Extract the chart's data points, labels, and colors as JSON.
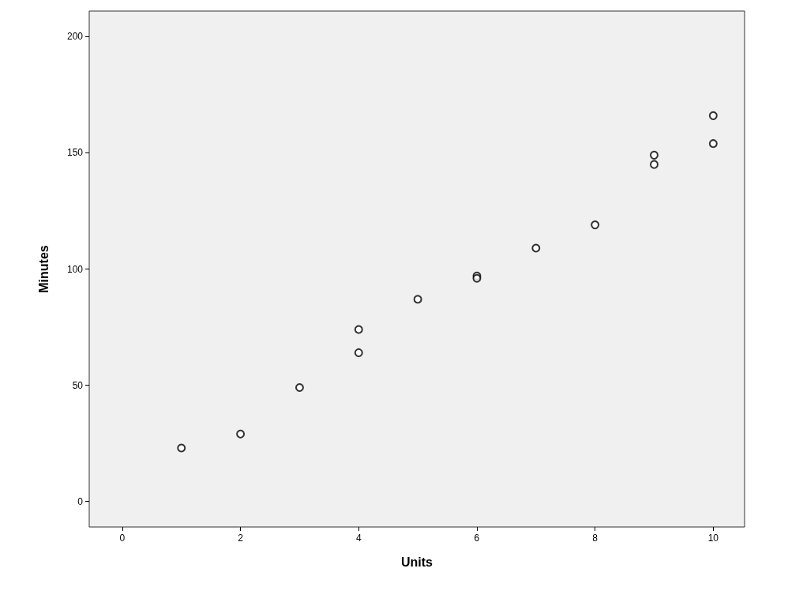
{
  "chart_data": {
    "type": "scatter",
    "xlabel": "Units",
    "ylabel": "Minutes",
    "x": [
      1,
      2,
      3,
      4,
      4,
      5,
      6,
      6,
      7,
      8,
      9,
      9,
      10,
      10
    ],
    "values": [
      23,
      29,
      49,
      64,
      74,
      87,
      97,
      96,
      109,
      119,
      149,
      145,
      166,
      154
    ],
    "color": "#000000",
    "marker": "circle",
    "grid": false,
    "xlim": [
      -0.56,
      10.53
    ],
    "xticks": [
      0,
      2,
      4,
      6,
      8,
      10
    ],
    "ylim": [
      -11,
      211
    ],
    "yticks": [
      0,
      50,
      100,
      150,
      200
    ]
  }
}
